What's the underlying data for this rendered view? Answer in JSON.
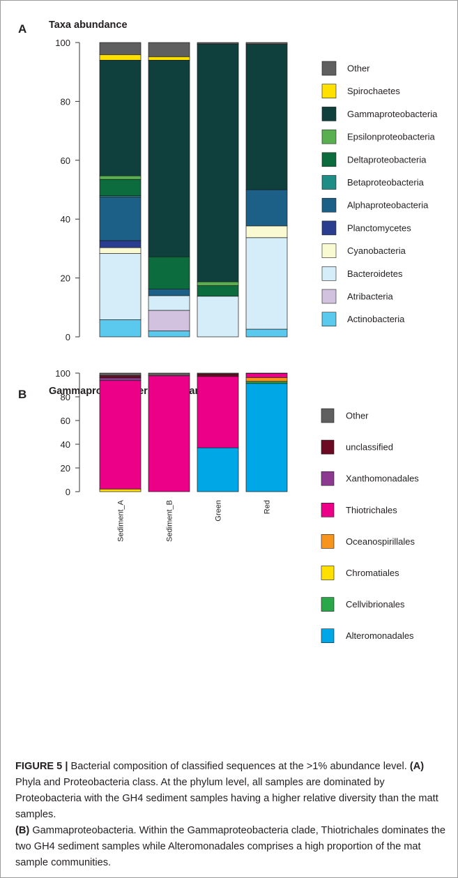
{
  "chart_data": [
    {
      "type": "bar",
      "stacked": true,
      "panel_letter": "A",
      "title": "Taxa abundance",
      "categories": [
        "Sediment_A",
        "Sediment_B",
        "Green",
        "Red"
      ],
      "ylim": [
        0,
        100
      ],
      "yticks": [
        0,
        20,
        40,
        60,
        80,
        100
      ],
      "legend_placement": "right",
      "series": [
        {
          "name": "Actinobacteria",
          "color": "#5bc8ee",
          "values": [
            5.8,
            2.0,
            0.0,
            2.6
          ]
        },
        {
          "name": "Atribacteria",
          "color": "#d3c2df",
          "values": [
            0.0,
            7.0,
            0.0,
            0.0
          ]
        },
        {
          "name": "Bacteroidetes",
          "color": "#d4edf8",
          "values": [
            22.5,
            5.0,
            13.8,
            31.1
          ]
        },
        {
          "name": "Cyanobacteria",
          "color": "#fafad2",
          "values": [
            2.0,
            0.0,
            0.0,
            4.0
          ]
        },
        {
          "name": "Planctomycetes",
          "color": "#2b3d8f",
          "values": [
            2.4,
            0.0,
            0.0,
            0.0
          ]
        },
        {
          "name": "Alphaproteobacteria",
          "color": "#1c6088",
          "values": [
            14.8,
            2.2,
            0.0,
            12.3
          ]
        },
        {
          "name": "Betaproteobacteria",
          "color": "#1f8c86",
          "values": [
            0.5,
            0.0,
            0.0,
            0.0
          ]
        },
        {
          "name": "Deltaproteobacteria",
          "color": "#0c6c3e",
          "values": [
            5.5,
            11.0,
            3.6,
            0.0
          ]
        },
        {
          "name": "Epsilonproteobacteria",
          "color": "#5ab050",
          "values": [
            1.2,
            0.0,
            1.3,
            0.0
          ]
        },
        {
          "name": "Gammaproteobacteria",
          "color": "#0f403e",
          "values": [
            39.3,
            66.8,
            80.8,
            49.4
          ]
        },
        {
          "name": "Spirochaetes",
          "color": "#ffe000",
          "values": [
            1.9,
            1.2,
            0.0,
            0.0
          ]
        },
        {
          "name": "Other",
          "color": "#5f5f5f",
          "values": [
            4.1,
            4.8,
            0.5,
            0.6
          ]
        }
      ]
    },
    {
      "type": "bar",
      "stacked": true,
      "panel_letter": "B",
      "title": "Gammaproteobacteria abundance",
      "categories": [
        "Sediment_A",
        "Sediment_B",
        "Green",
        "Red"
      ],
      "ylim": [
        0,
        100
      ],
      "yticks": [
        0,
        20,
        40,
        60,
        80,
        100
      ],
      "legend_placement": "right",
      "series": [
        {
          "name": "Alteromonadales",
          "color": "#00a7e6",
          "values": [
            0.0,
            0.0,
            37.0,
            91.3
          ]
        },
        {
          "name": "Cellvibrionales",
          "color": "#29a84a",
          "values": [
            0.0,
            0.0,
            0.0,
            1.7
          ]
        },
        {
          "name": "Chromatiales",
          "color": "#ffe000",
          "values": [
            2.2,
            0.0,
            0.0,
            0.0
          ]
        },
        {
          "name": "Oceanospirillales",
          "color": "#f7941d",
          "values": [
            0.0,
            0.0,
            0.0,
            3.3
          ]
        },
        {
          "name": "Thiotrichales",
          "color": "#ec0088",
          "values": [
            91.5,
            97.8,
            60.2,
            3.5
          ]
        },
        {
          "name": "Xanthomonadales",
          "color": "#8b3a8f",
          "values": [
            2.3,
            0.0,
            0.0,
            0.0
          ]
        },
        {
          "name": "unclassified",
          "color": "#6b0a22",
          "values": [
            1.9,
            0.0,
            2.1,
            0.0
          ]
        },
        {
          "name": "Other",
          "color": "#5f5f5f",
          "values": [
            2.1,
            2.2,
            0.7,
            0.2
          ]
        }
      ]
    }
  ],
  "caption": {
    "lead": "FIGURE 5 |",
    "body1": " Bacterial composition of classified sequences at the >1% abundance level. ",
    "ref_a": "(A)",
    "body2": " Phyla and Proteobacteria class. At the phylum level, all samples are dominated by Proteobacteria with the GH4 sediment samples having a higher relative diversity than the matt samples.",
    "ref_b": "(B)",
    "body3": " Gammaproteobacteria. Within the Gammaproteobacteria clade, Thiotrichales dominates the two GH4 sediment samples while Alteromonadales comprises a high proportion of the mat sample communities."
  }
}
